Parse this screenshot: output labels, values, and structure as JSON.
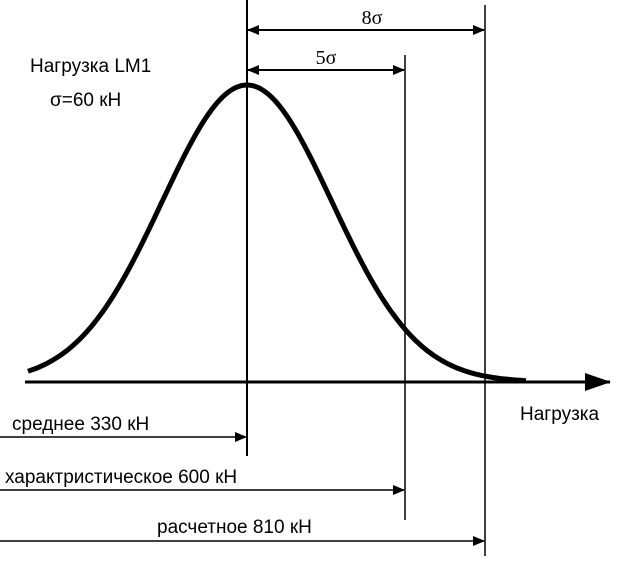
{
  "title": "Нагрузка LM1",
  "sigma_label": "σ=60 кН",
  "span_8": "8σ",
  "span_5": "5σ",
  "axis_label": "Нагрузка",
  "levels": [
    "среднее 330 кН",
    "характристическое 600 кН",
    "расчетное 810 кН"
  ]
}
